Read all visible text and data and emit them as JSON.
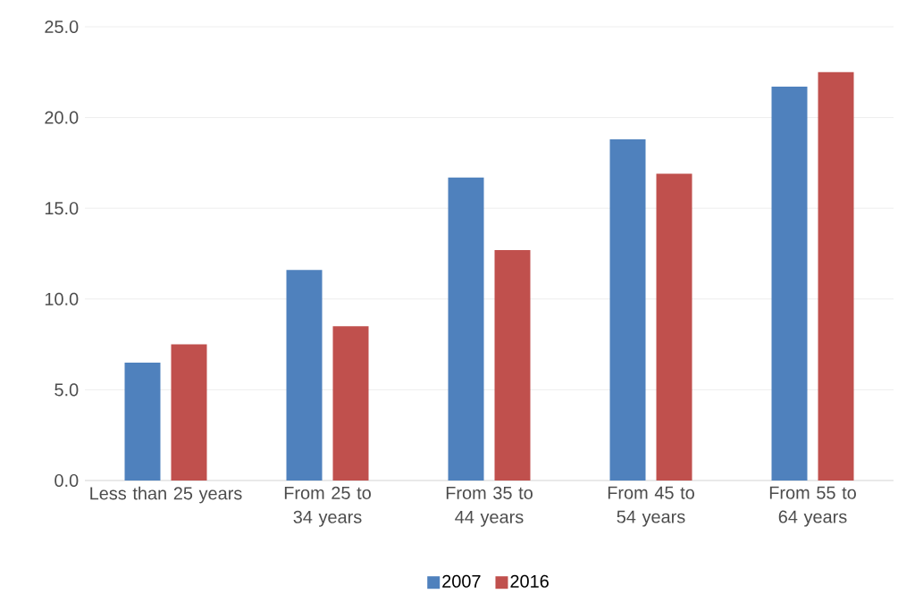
{
  "chart_data": {
    "type": "bar",
    "categories": [
      "Less than 25 years",
      "From 25 to 34 years",
      "From 35 to 44 years",
      "From 45 to 54 years",
      "From 55 to 64 years"
    ],
    "series": [
      {
        "name": "2007",
        "color": "#4f81bd",
        "values": [
          6.5,
          11.6,
          16.7,
          18.8,
          21.7
        ]
      },
      {
        "name": "2016",
        "color": "#c0504d",
        "values": [
          7.5,
          8.5,
          12.7,
          16.9,
          22.5
        ]
      }
    ],
    "ylim": [
      0,
      25
    ],
    "yticks": [
      {
        "value": 0,
        "label": "0.0"
      },
      {
        "value": 5,
        "label": "5.0"
      },
      {
        "value": 10,
        "label": "10.0"
      },
      {
        "value": 15,
        "label": "15.0"
      },
      {
        "value": 20,
        "label": "20.0"
      },
      {
        "value": 25,
        "label": "25.0"
      }
    ],
    "grid": "y",
    "legend": "bottom"
  }
}
